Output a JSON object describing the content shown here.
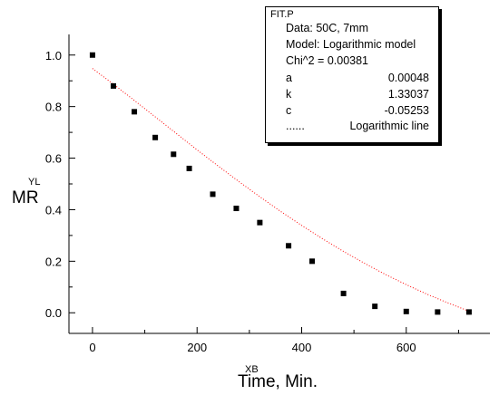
{
  "chart_data": {
    "type": "scatter",
    "xlabel_tag": "XB",
    "xlabel": "Time, Min.",
    "ylabel_tag": "YL",
    "ylabel": "MR",
    "xlim": [
      -45,
      760
    ],
    "ylim": [
      -0.08,
      1.08
    ],
    "x_ticks": [
      0,
      200,
      400,
      600
    ],
    "x_tick_labels": [
      "0",
      "200",
      "400",
      "600"
    ],
    "y_ticks": [
      0.0,
      0.2,
      0.4,
      0.6,
      0.8,
      1.0
    ],
    "y_tick_labels": [
      "0.0",
      "0.2",
      "0.4",
      "0.6",
      "0.8",
      "1.0"
    ],
    "grid": false,
    "series": [
      {
        "style": "square-markers",
        "color": "#000000",
        "x": [
          0,
          40,
          80,
          120,
          155,
          185,
          230,
          275,
          320,
          375,
          420,
          480,
          540,
          600,
          660,
          720
        ],
        "y": [
          1.0,
          0.88,
          0.78,
          0.68,
          0.615,
          0.56,
          0.46,
          0.405,
          0.35,
          0.26,
          0.2,
          0.075,
          0.025,
          0.005,
          0.003,
          0.003
        ]
      },
      {
        "style": "dotted-line",
        "color": "#ff0000",
        "x": [
          0,
          40,
          80,
          120,
          160,
          200,
          240,
          280,
          320,
          360,
          400,
          440,
          480,
          520,
          560,
          600,
          640,
          680,
          720
        ],
        "y": [
          0.948,
          0.887,
          0.824,
          0.76,
          0.696,
          0.632,
          0.57,
          0.509,
          0.45,
          0.393,
          0.339,
          0.287,
          0.238,
          0.192,
          0.149,
          0.109,
          0.072,
          0.038,
          0.006
        ]
      }
    ]
  },
  "legend_box": {
    "title": "FIT.P",
    "data_line": "Data: 50C, 7mm",
    "model_line": "Model: Logarithmic model",
    "chi_line": "Chi^2 = 0.00381",
    "params": [
      {
        "name": "a",
        "value": "0.00048"
      },
      {
        "name": "k",
        "value": "1.33037"
      },
      {
        "name": "c",
        "value": "-0.05253"
      }
    ],
    "line_marker": "......",
    "line_label": "Logarithmic line"
  }
}
